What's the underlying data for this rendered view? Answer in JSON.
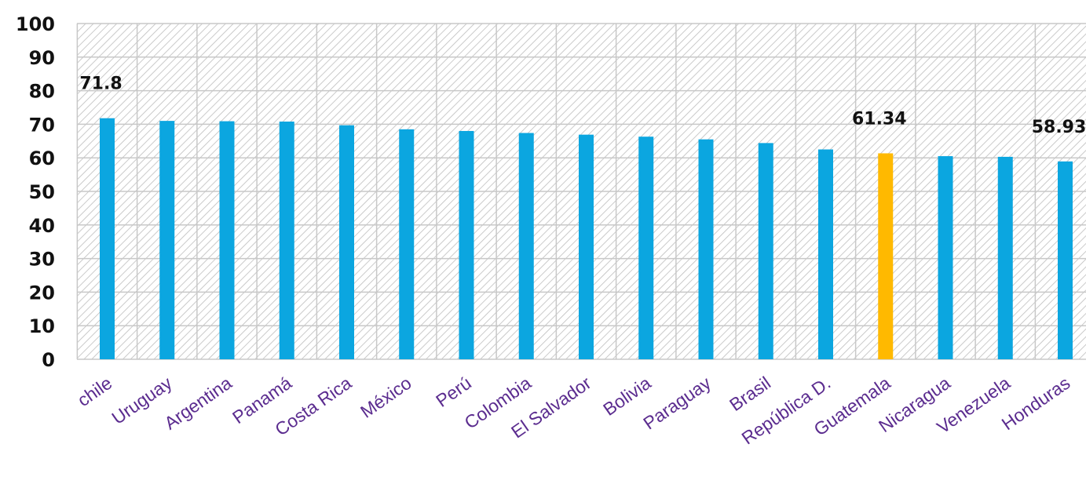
{
  "chart_data": {
    "type": "bar",
    "title": "",
    "xlabel": "",
    "ylabel": "",
    "ylim": [
      0,
      100
    ],
    "yticks": [
      0,
      10,
      20,
      30,
      40,
      50,
      60,
      70,
      80,
      90,
      100
    ],
    "grid": true,
    "legend": "none",
    "categories": [
      "chile",
      "Uruguay",
      "Argentina",
      "Panamá",
      "Costa Rica",
      "México",
      "Perú",
      "Colombia",
      "El Salvador",
      "Bolivia",
      "Paraguay",
      "Brasil",
      "República D.",
      "Guatemala",
      "Nicaragua",
      "Venezuela",
      "Honduras"
    ],
    "values": [
      71.8,
      71.0,
      70.9,
      70.8,
      69.7,
      68.5,
      68.0,
      67.4,
      66.9,
      66.3,
      65.5,
      64.4,
      62.5,
      61.34,
      60.5,
      60.3,
      58.93
    ],
    "data_labels": {
      "0": "71.8",
      "13": "61.34",
      "16": "58.93"
    },
    "highlight_index": 13,
    "colors": {
      "bar": "#0ba6e0",
      "highlight": "#ffb900",
      "grid": "#c8c8c8",
      "hatch": "#bdbdbd",
      "axis_text": "#111111",
      "category_text": "#5b2c8f"
    }
  }
}
